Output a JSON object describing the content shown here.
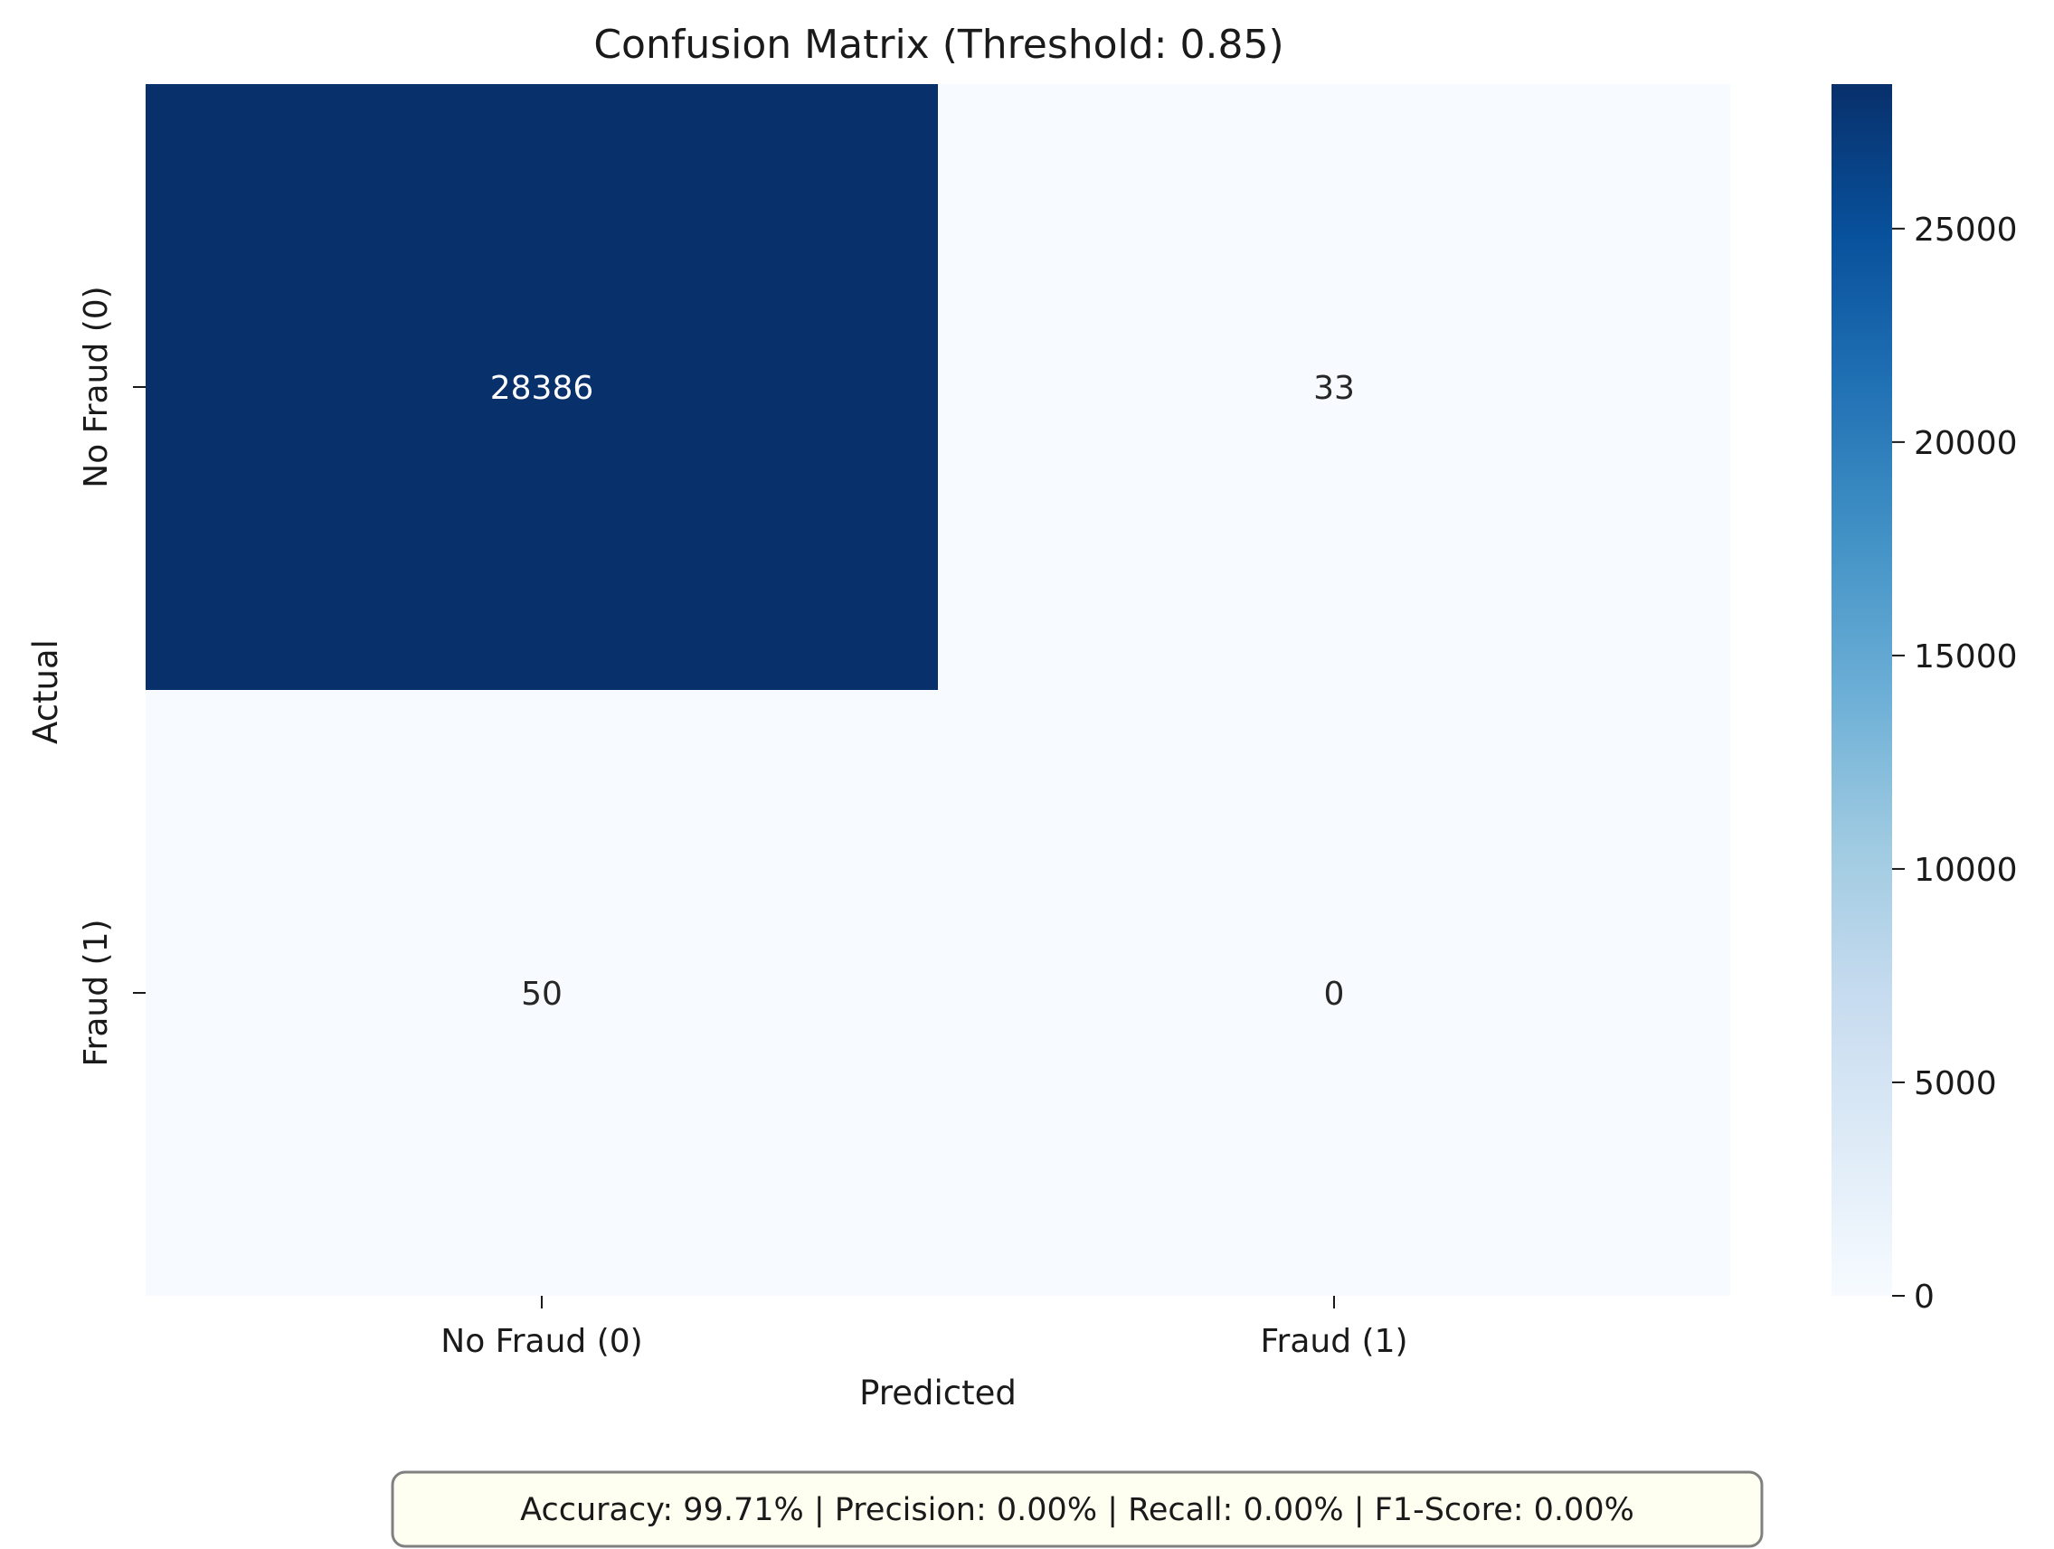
{
  "chart_data": {
    "type": "heatmap",
    "title": "Confusion Matrix (Threshold: 0.85)",
    "xlabel": "Predicted",
    "ylabel": "Actual",
    "x_categories": [
      "No Fraud (0)",
      "Fraud (1)"
    ],
    "y_categories": [
      "No Fraud (0)",
      "Fraud (1)"
    ],
    "matrix": [
      [
        28386,
        33
      ],
      [
        50,
        0
      ]
    ],
    "colormap": "Blues",
    "colorbar": {
      "range": [
        0,
        28386
      ],
      "ticks": [
        0,
        5000,
        10000,
        15000,
        20000,
        25000
      ],
      "tick_labels": [
        "0",
        "5000",
        "10000",
        "15000",
        "20000",
        "25000"
      ]
    },
    "colors": {
      "max": "#08306b",
      "min": "#f7fbff"
    }
  },
  "footer": {
    "metrics_text": "Accuracy: 99.71% | Precision: 0.00% | Recall: 0.00% | F1-Score: 0.00%"
  }
}
